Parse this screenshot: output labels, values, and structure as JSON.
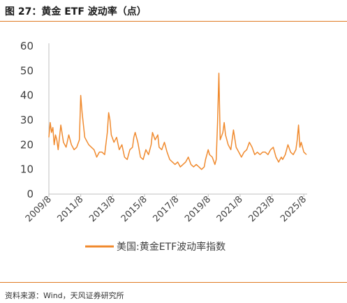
{
  "figure_title": "图 27：黄金 ETF 波动率（点）",
  "source": "资料来源：Wind，天风证券研究所",
  "colors": {
    "accent": "#e07a21",
    "series": "#f08a2e",
    "axis": "#bfbfbf",
    "text": "#404040"
  },
  "chart_data": {
    "type": "line",
    "title": "",
    "xlabel": "",
    "ylabel": "",
    "x_range": [
      "2009-08",
      "2025-10"
    ],
    "ylim": [
      0,
      60
    ],
    "yticks": [
      "0",
      "10",
      "20",
      "30",
      "40",
      "50",
      "60"
    ],
    "xticks": [
      {
        "date": "2009-08",
        "label": "2009/8"
      },
      {
        "date": "2011-08",
        "label": "2011/8"
      },
      {
        "date": "2013-08",
        "label": "2013/8"
      },
      {
        "date": "2015-08",
        "label": "2015/8"
      },
      {
        "date": "2017-08",
        "label": "2017/8"
      },
      {
        "date": "2019-08",
        "label": "2019/8"
      },
      {
        "date": "2021-08",
        "label": "2021/8"
      },
      {
        "date": "2023-08",
        "label": "2023/8"
      },
      {
        "date": "2025-08",
        "label": "2025/8"
      }
    ],
    "grid": false,
    "legend_position": "bottom",
    "series": [
      {
        "name": "美国:黄金ETF波动率指数",
        "x": [
          "2009-08",
          "2009-09",
          "2009-10",
          "2009-11",
          "2009-12",
          "2010-01",
          "2010-02",
          "2010-03",
          "2010-05",
          "2010-07",
          "2010-09",
          "2010-11",
          "2011-01",
          "2011-03",
          "2011-05",
          "2011-07",
          "2011-08",
          "2011-09",
          "2011-10",
          "2011-11",
          "2011-12",
          "2012-02",
          "2012-04",
          "2012-06",
          "2012-08",
          "2012-10",
          "2012-12",
          "2013-02",
          "2013-04",
          "2013-05",
          "2013-06",
          "2013-07",
          "2013-09",
          "2013-11",
          "2014-01",
          "2014-03",
          "2014-05",
          "2014-07",
          "2014-09",
          "2014-11",
          "2014-12",
          "2015-01",
          "2015-03",
          "2015-05",
          "2015-07",
          "2015-09",
          "2015-11",
          "2016-01",
          "2016-02",
          "2016-04",
          "2016-06",
          "2016-07",
          "2016-09",
          "2016-11",
          "2017-01",
          "2017-03",
          "2017-05",
          "2017-07",
          "2017-09",
          "2017-11",
          "2018-01",
          "2018-03",
          "2018-05",
          "2018-07",
          "2018-09",
          "2018-11",
          "2019-01",
          "2019-03",
          "2019-05",
          "2019-06",
          "2019-08",
          "2019-09",
          "2019-11",
          "2020-01",
          "2020-02",
          "2020-03",
          "2020-04",
          "2020-05",
          "2020-07",
          "2020-08",
          "2020-09",
          "2020-11",
          "2021-01",
          "2021-03",
          "2021-05",
          "2021-07",
          "2021-09",
          "2021-11",
          "2022-01",
          "2022-03",
          "2022-05",
          "2022-07",
          "2022-09",
          "2022-11",
          "2023-01",
          "2023-03",
          "2023-05",
          "2023-07",
          "2023-09",
          "2023-11",
          "2024-01",
          "2024-03",
          "2024-04",
          "2024-06",
          "2024-08",
          "2024-10",
          "2024-12",
          "2025-02",
          "2025-03",
          "2025-04",
          "2025-05",
          "2025-06",
          "2025-08",
          "2025-10"
        ],
        "values": [
          23,
          29,
          25,
          27,
          20,
          24,
          22,
          18,
          28,
          21,
          19,
          24,
          20,
          18,
          19,
          22,
          40,
          33,
          28,
          23,
          22,
          20,
          19,
          18,
          15,
          17,
          17,
          16,
          25,
          33,
          30,
          24,
          21,
          23,
          18,
          20,
          15,
          14,
          18,
          19,
          23,
          25,
          21,
          15,
          14,
          18,
          16,
          20,
          25,
          22,
          24,
          19,
          18,
          21,
          17,
          14,
          13,
          12,
          13,
          11,
          12,
          13,
          15,
          12,
          11,
          12,
          11,
          10,
          11,
          14,
          18,
          16,
          15,
          12,
          14,
          29,
          49,
          22,
          25,
          29,
          24,
          20,
          18,
          26,
          19,
          17,
          15,
          17,
          18,
          21,
          19,
          16,
          17,
          16,
          17,
          17,
          16,
          18,
          19,
          15,
          13,
          15,
          14,
          16,
          20,
          17,
          16,
          18,
          22,
          28,
          19,
          21,
          17,
          16
        ]
      }
    ]
  }
}
